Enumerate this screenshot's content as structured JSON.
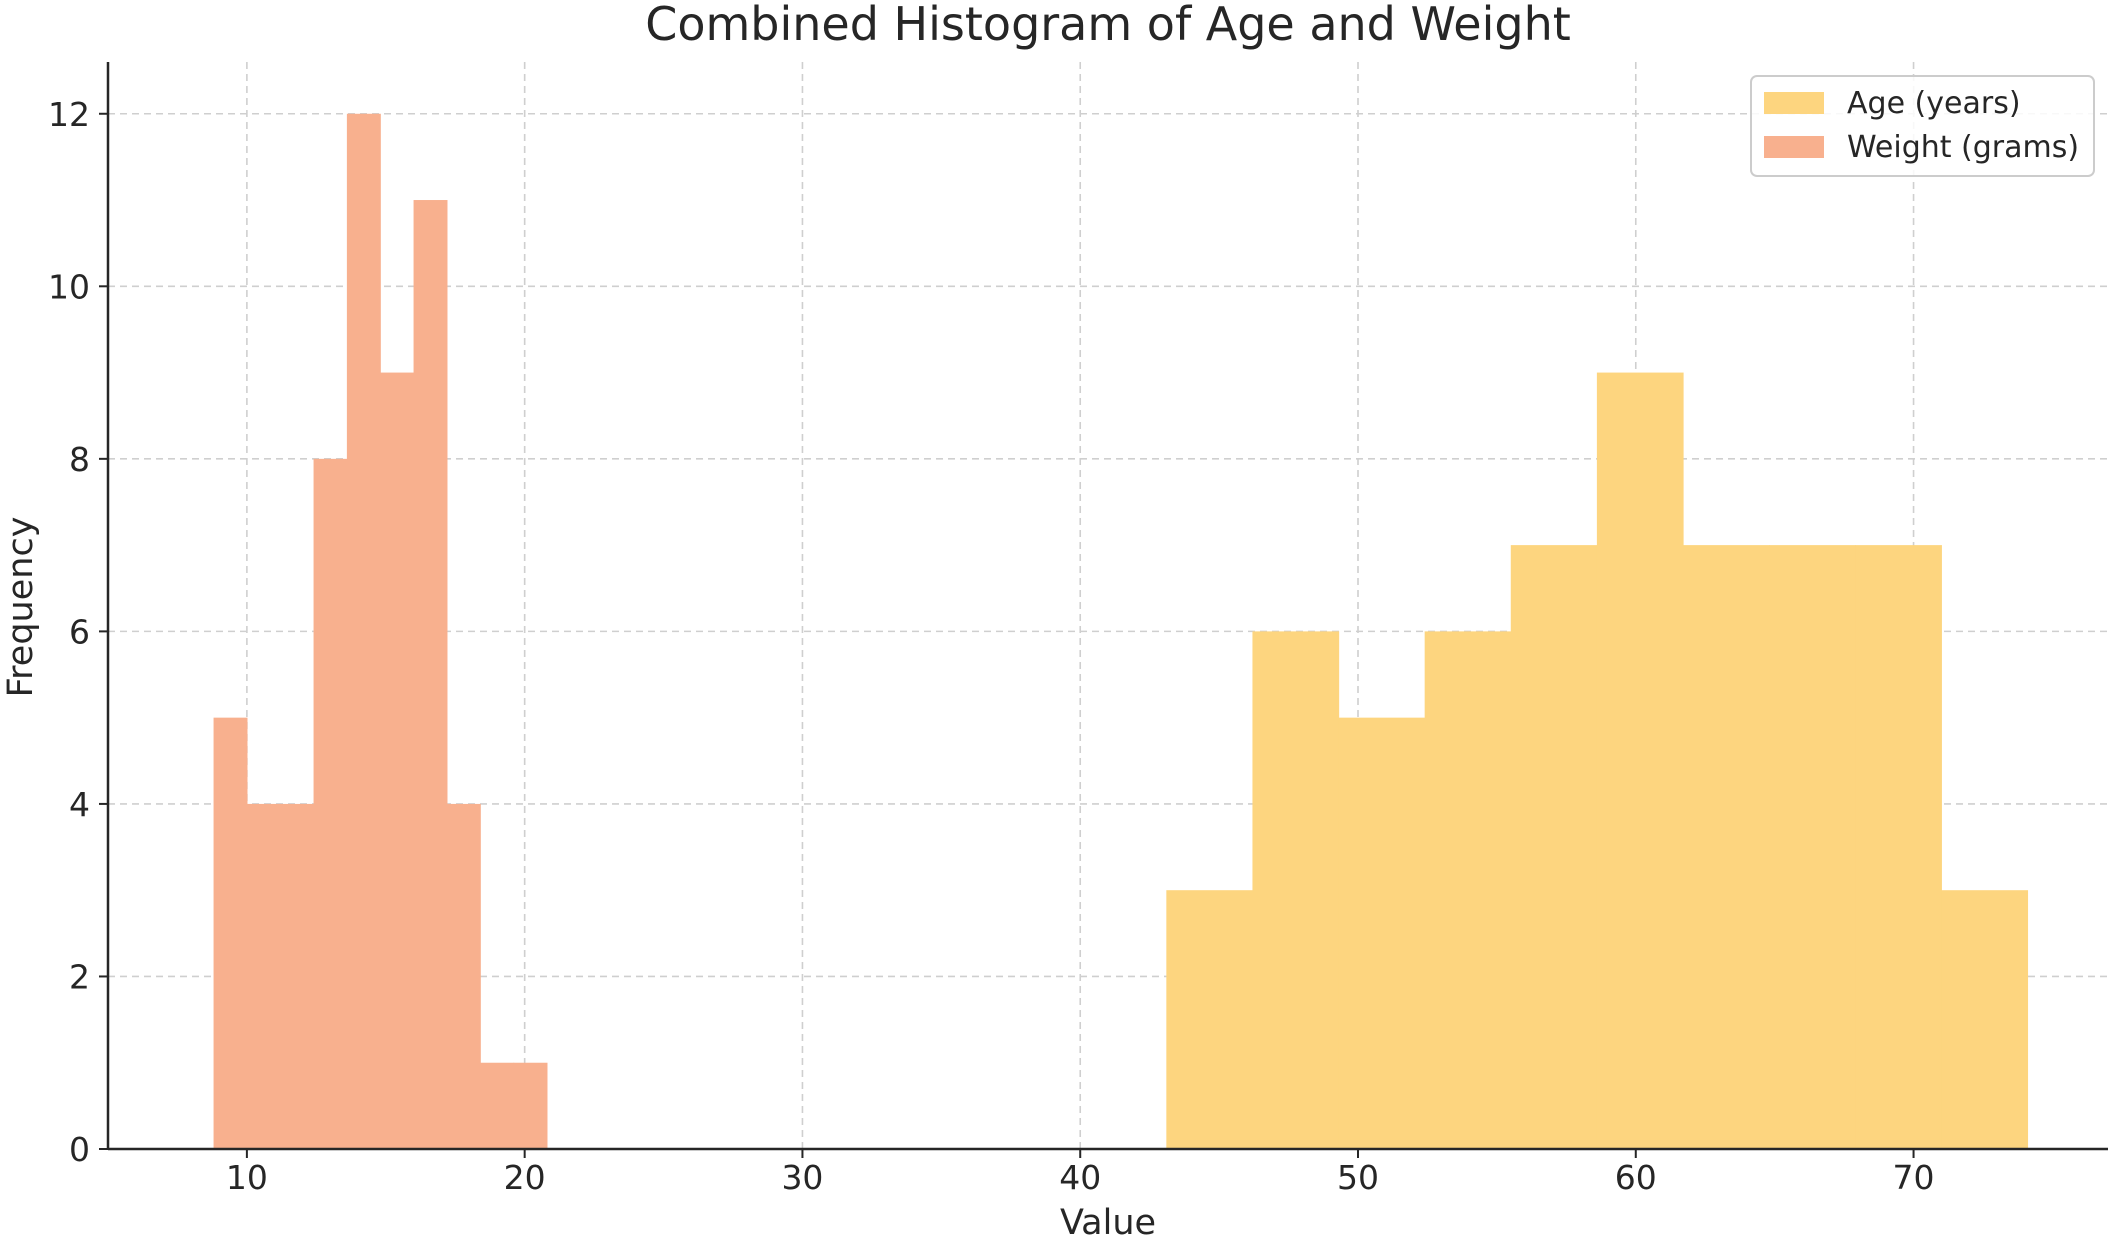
{
  "chart_data": {
    "type": "bar",
    "title": "Combined Histogram of Age and Weight",
    "xlabel": "Value",
    "ylabel": "Frequency",
    "xlim": [
      5,
      77
    ],
    "ylim": [
      0,
      12.6
    ],
    "xticks": [
      10,
      20,
      30,
      40,
      50,
      60,
      70
    ],
    "yticks": [
      0,
      2,
      4,
      6,
      8,
      10,
      12
    ],
    "grid": true,
    "legend_position": "top-right",
    "series": [
      {
        "name": "Age (years)",
        "color": "#FDD57F",
        "bins": [
          {
            "x0": 43.1,
            "x1": 46.2,
            "count": 3
          },
          {
            "x0": 46.2,
            "x1": 49.3,
            "count": 6
          },
          {
            "x0": 49.3,
            "x1": 52.4,
            "count": 5
          },
          {
            "x0": 52.4,
            "x1": 55.5,
            "count": 6
          },
          {
            "x0": 55.5,
            "x1": 58.6,
            "count": 7
          },
          {
            "x0": 58.6,
            "x1": 61.7,
            "count": 9
          },
          {
            "x0": 61.7,
            "x1": 64.8,
            "count": 7
          },
          {
            "x0": 64.8,
            "x1": 67.9,
            "count": 7
          },
          {
            "x0": 67.9,
            "x1": 71.0,
            "count": 7
          },
          {
            "x0": 71.0,
            "x1": 74.1,
            "count": 3
          }
        ]
      },
      {
        "name": "Weight (grams)",
        "color": "#F8B08E",
        "bins": [
          {
            "x0": 8.8,
            "x1": 10.0,
            "count": 5
          },
          {
            "x0": 10.0,
            "x1": 11.2,
            "count": 4
          },
          {
            "x0": 11.2,
            "x1": 12.4,
            "count": 4
          },
          {
            "x0": 12.4,
            "x1": 13.6,
            "count": 8
          },
          {
            "x0": 13.6,
            "x1": 14.8,
            "count": 12
          },
          {
            "x0": 14.8,
            "x1": 16.0,
            "count": 9
          },
          {
            "x0": 16.0,
            "x1": 17.2,
            "count": 11
          },
          {
            "x0": 17.2,
            "x1": 18.4,
            "count": 4
          },
          {
            "x0": 18.4,
            "x1": 19.6,
            "count": 1
          },
          {
            "x0": 19.6,
            "x1": 20.8,
            "count": 1
          }
        ]
      }
    ]
  }
}
